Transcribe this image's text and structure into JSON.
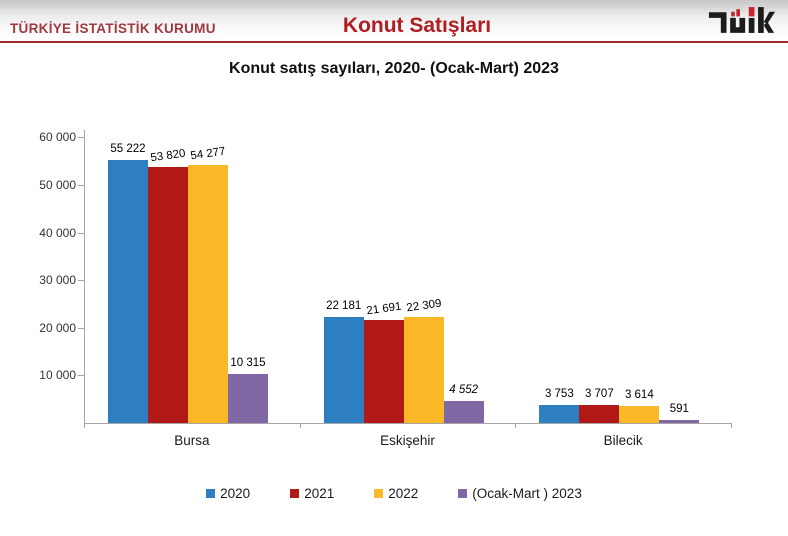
{
  "header": {
    "org_name": "TÜRKİYE İSTATİSTİK KURUMU",
    "title": "Konut Satışları",
    "logo": "tuik-logo"
  },
  "chart_data": {
    "type": "bar",
    "title": "Konut satış sayıları, 2020- (Ocak-Mart) 2023",
    "categories": [
      "Bursa",
      "Eskişehir",
      "Bilecik"
    ],
    "series": [
      {
        "name": "2020",
        "color": "#2E7FC2",
        "values": [
          55222,
          22181,
          3753
        ],
        "labels": [
          "55 222",
          "22 181",
          "3 753"
        ]
      },
      {
        "name": "2021",
        "color": "#B11917",
        "values": [
          53820,
          21691,
          3707
        ],
        "labels": [
          "53 820",
          "21 691",
          "3 707"
        ]
      },
      {
        "name": "2022",
        "color": "#FBB827",
        "values": [
          54277,
          22309,
          3614
        ],
        "labels": [
          "54 277",
          "22 309",
          "3 614"
        ]
      },
      {
        "name": "(Ocak-Mart ) 2023",
        "color": "#7F68A4",
        "values": [
          10315,
          4552,
          591
        ],
        "labels": [
          "10 315",
          "4 552",
          "591"
        ]
      }
    ],
    "ylim": [
      0,
      60000
    ],
    "yticks": [
      10000,
      20000,
      30000,
      40000,
      50000,
      60000
    ],
    "ytick_labels": [
      "10 000",
      "20 000",
      "30 000",
      "40 000",
      "50 000",
      "60 000"
    ],
    "xlabel": "",
    "ylabel": "",
    "grid": false,
    "legend_position": "bottom",
    "axis_color": "#A6A6A6"
  }
}
